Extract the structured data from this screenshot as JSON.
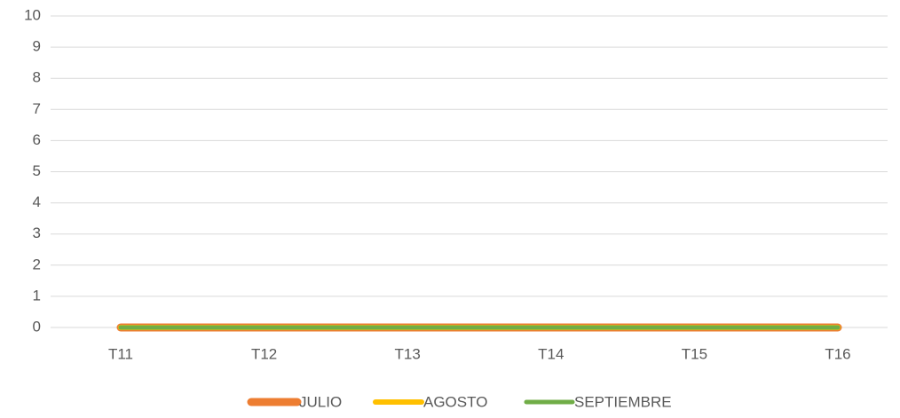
{
  "chart_data": {
    "type": "line",
    "categories": [
      "T11",
      "T12",
      "T13",
      "T14",
      "T15",
      "T16"
    ],
    "series": [
      {
        "name": "JULIO",
        "color": "#ED7D31",
        "values": [
          0,
          0,
          0,
          0,
          0,
          0
        ]
      },
      {
        "name": "AGOSTO",
        "color": "#FFC000",
        "values": [
          0,
          0,
          0,
          0,
          0,
          0
        ]
      },
      {
        "name": "SEPTIEMBRE",
        "color": "#70AD47",
        "values": [
          0,
          0,
          0,
          0,
          0,
          0
        ]
      }
    ],
    "ylim": [
      0,
      10
    ],
    "yticks": [
      0,
      1,
      2,
      3,
      4,
      5,
      6,
      7,
      8,
      9,
      10
    ],
    "grid": true,
    "legend": "bottom"
  }
}
